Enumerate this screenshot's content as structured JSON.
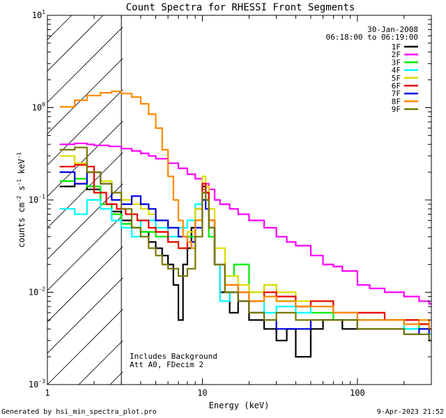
{
  "chart_data": {
    "type": "line",
    "title": "Count Spectra for RHESSI Front Segments",
    "xlabel": "Energy (keV)",
    "ylabel_parts": {
      "a": "counts cm",
      "b": "-2",
      "c": " s",
      "d": "-1",
      "e": " keV",
      "f": "-1"
    },
    "x_scale": "log",
    "y_scale": "log",
    "xlim": [
      1,
      300
    ],
    "ylim": [
      0.001,
      10
    ],
    "x_ticks": [
      {
        "value": 1,
        "label": "1"
      },
      {
        "value": 10,
        "label": "10"
      },
      {
        "value": 100,
        "label": "100"
      }
    ],
    "y_ticks": [
      {
        "value": 0.001,
        "base": "10",
        "exp": "-3"
      },
      {
        "value": 0.01,
        "base": "10",
        "exp": "-2"
      },
      {
        "value": 0.1,
        "base": "10",
        "exp": "-1"
      },
      {
        "value": 1,
        "base": "10",
        "exp": "0"
      },
      {
        "value": 10,
        "base": "10",
        "exp": "1"
      }
    ],
    "hatched_region": {
      "x_from": 1,
      "x_to": 3
    },
    "date": "30-Jan-2008",
    "time_range": "06:18:00 to 06:19:00",
    "annotations": [
      "Includes Background",
      "Att A0, FDecim 2"
    ],
    "footer_left": "Generated by hsi_min_spectra_plot.pro",
    "footer_right": "9-Apr-2023 21:52",
    "series": [
      {
        "name": "1F",
        "color": "#000000",
        "points": [
          [
            1.2,
            0.14
          ],
          [
            1.5,
            0.15
          ],
          [
            1.8,
            0.13
          ],
          [
            2.2,
            0.09
          ],
          [
            2.6,
            0.075
          ],
          [
            3.0,
            0.06
          ],
          [
            3.5,
            0.05
          ],
          [
            4.0,
            0.045
          ],
          [
            4.5,
            0.035
          ],
          [
            5.0,
            0.03
          ],
          [
            5.5,
            0.025
          ],
          [
            6.0,
            0.02
          ],
          [
            6.5,
            0.012
          ],
          [
            7.0,
            0.005
          ],
          [
            7.5,
            0.02
          ],
          [
            8.0,
            0.03
          ],
          [
            8.5,
            0.05
          ],
          [
            9.0,
            0.08
          ],
          [
            10.0,
            0.14
          ],
          [
            10.5,
            0.12
          ],
          [
            11.0,
            0.06
          ],
          [
            12.0,
            0.02
          ],
          [
            13.0,
            0.01
          ],
          [
            15.0,
            0.006
          ],
          [
            17.0,
            0.008
          ],
          [
            20.0,
            0.005
          ],
          [
            25.0,
            0.004
          ],
          [
            30.0,
            0.003
          ],
          [
            35.0,
            0.004
          ],
          [
            40.0,
            0.002
          ],
          [
            50.0,
            0.004
          ],
          [
            60.0,
            0.005
          ],
          [
            80.0,
            0.004
          ],
          [
            100.0,
            0.005
          ],
          [
            150.0,
            0.005
          ],
          [
            200.0,
            0.005
          ],
          [
            250.0,
            0.0045
          ],
          [
            290.0,
            0.004
          ]
        ]
      },
      {
        "name": "2F",
        "color": "#ff00ff",
        "points": [
          [
            1.2,
            0.4
          ],
          [
            1.5,
            0.41
          ],
          [
            1.8,
            0.4
          ],
          [
            2.0,
            0.39
          ],
          [
            2.5,
            0.38
          ],
          [
            3.0,
            0.36
          ],
          [
            3.5,
            0.34
          ],
          [
            4.0,
            0.32
          ],
          [
            4.5,
            0.3
          ],
          [
            5.0,
            0.28
          ],
          [
            6.0,
            0.25
          ],
          [
            7.0,
            0.22
          ],
          [
            8.0,
            0.19
          ],
          [
            9.0,
            0.17
          ],
          [
            10.0,
            0.15
          ],
          [
            11.0,
            0.13
          ],
          [
            12.0,
            0.1
          ],
          [
            13.0,
            0.09
          ],
          [
            15.0,
            0.08
          ],
          [
            17.0,
            0.07
          ],
          [
            20.0,
            0.06
          ],
          [
            25.0,
            0.05
          ],
          [
            30.0,
            0.04
          ],
          [
            35.0,
            0.035
          ],
          [
            40.0,
            0.032
          ],
          [
            50.0,
            0.025
          ],
          [
            60.0,
            0.02
          ],
          [
            70.0,
            0.019
          ],
          [
            80.0,
            0.017
          ],
          [
            100.0,
            0.012
          ],
          [
            120.0,
            0.011
          ],
          [
            150.0,
            0.01
          ],
          [
            200.0,
            0.009
          ],
          [
            250.0,
            0.008
          ],
          [
            290.0,
            0.0075
          ]
        ]
      },
      {
        "name": "3F",
        "color": "#00ee00",
        "points": [
          [
            1.2,
            0.16
          ],
          [
            1.5,
            0.17
          ],
          [
            1.8,
            0.14
          ],
          [
            2.2,
            0.09
          ],
          [
            2.6,
            0.07
          ],
          [
            3.0,
            0.055
          ],
          [
            3.5,
            0.05
          ],
          [
            4.0,
            0.045
          ],
          [
            5.0,
            0.04
          ],
          [
            6.0,
            0.035
          ],
          [
            7.0,
            0.03
          ],
          [
            8.0,
            0.04
          ],
          [
            9.0,
            0.06
          ],
          [
            10.0,
            0.13
          ],
          [
            10.5,
            0.1
          ],
          [
            11.0,
            0.04
          ],
          [
            12.0,
            0.02
          ],
          [
            14.0,
            0.015
          ],
          [
            16.0,
            0.02
          ],
          [
            20.0,
            0.01
          ],
          [
            25.0,
            0.012
          ],
          [
            30.0,
            0.008
          ],
          [
            40.0,
            0.007
          ],
          [
            50.0,
            0.006
          ],
          [
            70.0,
            0.005
          ],
          [
            100.0,
            0.005
          ],
          [
            150.0,
            0.005
          ],
          [
            200.0,
            0.004
          ],
          [
            250.0,
            0.0045
          ],
          [
            290.0,
            0.004
          ]
        ]
      },
      {
        "name": "4F",
        "color": "#00ffff",
        "points": [
          [
            1.2,
            0.08
          ],
          [
            1.5,
            0.07
          ],
          [
            1.8,
            0.1
          ],
          [
            2.2,
            0.08
          ],
          [
            2.6,
            0.06
          ],
          [
            3.0,
            0.05
          ],
          [
            3.5,
            0.04
          ],
          [
            4.0,
            0.06
          ],
          [
            5.0,
            0.05
          ],
          [
            6.0,
            0.04
          ],
          [
            7.0,
            0.05
          ],
          [
            8.0,
            0.06
          ],
          [
            9.0,
            0.09
          ],
          [
            10.0,
            0.12
          ],
          [
            10.5,
            0.1
          ],
          [
            11.0,
            0.05
          ],
          [
            12.0,
            0.02
          ],
          [
            13.0,
            0.008
          ],
          [
            15.0,
            0.01
          ],
          [
            20.0,
            0.008
          ],
          [
            25.0,
            0.006
          ],
          [
            30.0,
            0.007
          ],
          [
            40.0,
            0.006
          ],
          [
            50.0,
            0.008
          ],
          [
            70.0,
            0.006
          ],
          [
            100.0,
            0.005
          ],
          [
            150.0,
            0.005
          ],
          [
            200.0,
            0.004
          ],
          [
            250.0,
            0.004
          ],
          [
            290.0,
            0.0035
          ]
        ]
      },
      {
        "name": "5F",
        "color": "#dddd00",
        "points": [
          [
            1.2,
            0.3
          ],
          [
            1.5,
            0.25
          ],
          [
            1.8,
            0.2
          ],
          [
            2.2,
            0.16
          ],
          [
            2.6,
            0.12
          ],
          [
            3.0,
            0.1
          ],
          [
            3.5,
            0.09
          ],
          [
            4.0,
            0.08
          ],
          [
            4.5,
            0.07
          ],
          [
            5.0,
            0.06
          ],
          [
            6.0,
            0.05
          ],
          [
            7.0,
            0.04
          ],
          [
            8.0,
            0.045
          ],
          [
            9.0,
            0.08
          ],
          [
            10.0,
            0.18
          ],
          [
            10.5,
            0.14
          ],
          [
            11.0,
            0.08
          ],
          [
            12.0,
            0.03
          ],
          [
            14.0,
            0.015
          ],
          [
            17.0,
            0.012
          ],
          [
            20.0,
            0.01
          ],
          [
            25.0,
            0.012
          ],
          [
            30.0,
            0.01
          ],
          [
            40.0,
            0.008
          ],
          [
            50.0,
            0.008
          ],
          [
            70.0,
            0.006
          ],
          [
            100.0,
            0.006
          ],
          [
            150.0,
            0.005
          ],
          [
            200.0,
            0.005
          ],
          [
            250.0,
            0.0045
          ],
          [
            290.0,
            0.004
          ]
        ]
      },
      {
        "name": "6F",
        "color": "#ee0000",
        "points": [
          [
            1.2,
            0.23
          ],
          [
            1.5,
            0.24
          ],
          [
            1.8,
            0.23
          ],
          [
            2.0,
            0.12
          ],
          [
            2.4,
            0.09
          ],
          [
            2.8,
            0.08
          ],
          [
            3.2,
            0.07
          ],
          [
            3.8,
            0.06
          ],
          [
            4.5,
            0.05
          ],
          [
            5.0,
            0.045
          ],
          [
            6.0,
            0.035
          ],
          [
            7.0,
            0.03
          ],
          [
            8.0,
            0.035
          ],
          [
            9.0,
            0.06
          ],
          [
            10.0,
            0.15
          ],
          [
            10.5,
            0.12
          ],
          [
            11.0,
            0.06
          ],
          [
            12.0,
            0.02
          ],
          [
            14.0,
            0.012
          ],
          [
            17.0,
            0.01
          ],
          [
            20.0,
            0.008
          ],
          [
            25.0,
            0.01
          ],
          [
            30.0,
            0.009
          ],
          [
            40.0,
            0.007
          ],
          [
            50.0,
            0.008
          ],
          [
            70.0,
            0.006
          ],
          [
            100.0,
            0.006
          ],
          [
            150.0,
            0.005
          ],
          [
            200.0,
            0.005
          ],
          [
            250.0,
            0.0045
          ],
          [
            290.0,
            0.004
          ]
        ]
      },
      {
        "name": "7F",
        "color": "#0000dd",
        "points": [
          [
            1.2,
            0.2
          ],
          [
            1.5,
            0.15
          ],
          [
            1.8,
            0.2
          ],
          [
            2.2,
            0.15
          ],
          [
            2.6,
            0.1
          ],
          [
            3.0,
            0.09
          ],
          [
            3.5,
            0.11
          ],
          [
            4.0,
            0.09
          ],
          [
            4.5,
            0.08
          ],
          [
            5.0,
            0.06
          ],
          [
            6.0,
            0.05
          ],
          [
            7.0,
            0.04
          ],
          [
            8.0,
            0.035
          ],
          [
            9.0,
            0.05
          ],
          [
            10.0,
            0.1
          ],
          [
            10.5,
            0.08
          ],
          [
            11.0,
            0.05
          ],
          [
            12.0,
            0.02
          ],
          [
            14.0,
            0.01
          ],
          [
            17.0,
            0.008
          ],
          [
            20.0,
            0.006
          ],
          [
            25.0,
            0.005
          ],
          [
            30.0,
            0.004
          ],
          [
            40.0,
            0.004
          ],
          [
            50.0,
            0.005
          ],
          [
            70.0,
            0.005
          ],
          [
            100.0,
            0.004
          ],
          [
            150.0,
            0.004
          ],
          [
            200.0,
            0.0035
          ],
          [
            250.0,
            0.004
          ],
          [
            290.0,
            0.003
          ]
        ]
      },
      {
        "name": "8F",
        "color": "#ff8800",
        "points": [
          [
            1.2,
            1.02
          ],
          [
            1.5,
            1.2
          ],
          [
            1.8,
            1.35
          ],
          [
            2.2,
            1.45
          ],
          [
            2.6,
            1.5
          ],
          [
            3.0,
            1.42
          ],
          [
            3.5,
            1.3
          ],
          [
            4.0,
            1.1
          ],
          [
            4.5,
            0.85
          ],
          [
            5.0,
            0.6
          ],
          [
            5.5,
            0.35
          ],
          [
            6.0,
            0.18
          ],
          [
            6.5,
            0.1
          ],
          [
            7.0,
            0.06
          ],
          [
            7.5,
            0.04
          ],
          [
            8.0,
            0.035
          ],
          [
            8.5,
            0.03
          ],
          [
            9.0,
            0.06
          ],
          [
            10.0,
            0.12
          ],
          [
            10.5,
            0.1
          ],
          [
            11.0,
            0.06
          ],
          [
            12.0,
            0.02
          ],
          [
            14.0,
            0.012
          ],
          [
            17.0,
            0.01
          ],
          [
            20.0,
            0.008
          ],
          [
            25.0,
            0.009
          ],
          [
            30.0,
            0.008
          ],
          [
            40.0,
            0.007
          ],
          [
            50.0,
            0.007
          ],
          [
            70.0,
            0.006
          ],
          [
            100.0,
            0.005
          ],
          [
            150.0,
            0.005
          ],
          [
            200.0,
            0.0045
          ],
          [
            250.0,
            0.005
          ],
          [
            290.0,
            0.004
          ]
        ]
      },
      {
        "name": "9F",
        "color": "#777700",
        "points": [
          [
            1.2,
            0.35
          ],
          [
            1.5,
            0.37
          ],
          [
            1.8,
            0.2
          ],
          [
            2.2,
            0.15
          ],
          [
            2.6,
            0.12
          ],
          [
            3.0,
            0.08
          ],
          [
            3.5,
            0.05
          ],
          [
            4.0,
            0.04
          ],
          [
            4.5,
            0.03
          ],
          [
            5.0,
            0.025
          ],
          [
            5.5,
            0.02
          ],
          [
            6.0,
            0.018
          ],
          [
            7.0,
            0.015
          ],
          [
            8.0,
            0.018
          ],
          [
            9.0,
            0.04
          ],
          [
            10.0,
            0.12
          ],
          [
            10.5,
            0.1
          ],
          [
            11.0,
            0.05
          ],
          [
            12.0,
            0.02
          ],
          [
            14.0,
            0.01
          ],
          [
            17.0,
            0.008
          ],
          [
            20.0,
            0.006
          ],
          [
            25.0,
            0.005
          ],
          [
            30.0,
            0.006
          ],
          [
            40.0,
            0.005
          ],
          [
            50.0,
            0.005
          ],
          [
            70.0,
            0.005
          ],
          [
            100.0,
            0.004
          ],
          [
            150.0,
            0.004
          ],
          [
            200.0,
            0.0035
          ],
          [
            250.0,
            0.0035
          ],
          [
            290.0,
            0.003
          ]
        ]
      }
    ]
  }
}
